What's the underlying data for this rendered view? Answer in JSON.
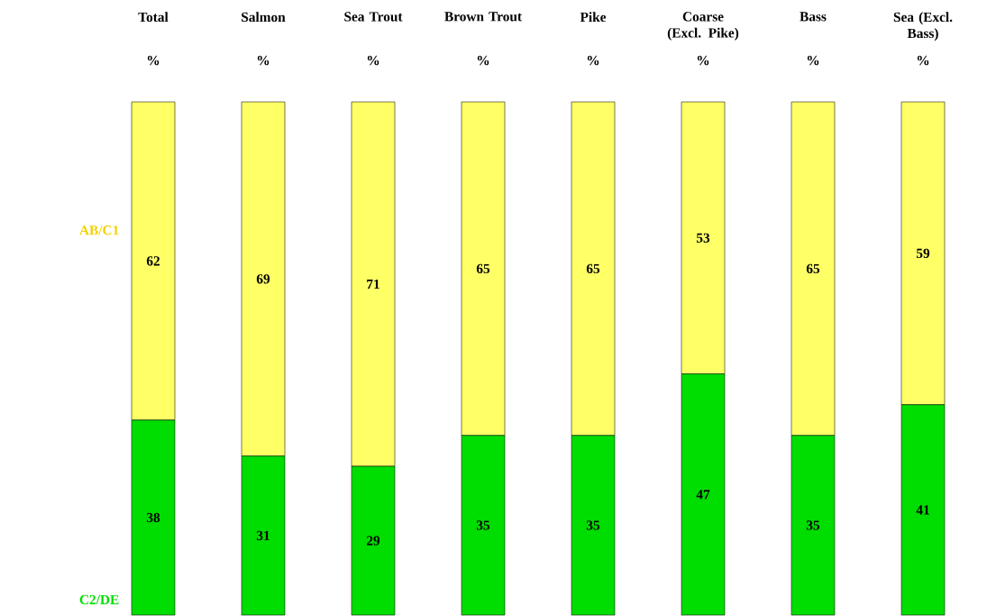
{
  "chart_data": {
    "type": "bar",
    "stacked": true,
    "data_labels": true,
    "categories": [
      "Total",
      "Salmon",
      "Sea Trout",
      "Brown Trout",
      "Pike",
      "Coarse (Excl. Pike)",
      "Bass",
      "Sea (Excl. Bass)"
    ],
    "series": [
      {
        "name": "C2/DE",
        "color": "#00dd00",
        "values": [
          38,
          31,
          29,
          35,
          35,
          47,
          35,
          41
        ]
      },
      {
        "name": "AB/C1",
        "color": "#ffff66",
        "values": [
          62,
          69,
          71,
          65,
          65,
          53,
          65,
          59
        ]
      }
    ],
    "annotations": [
      "%",
      "%",
      "%",
      "%",
      "%",
      "%",
      "%",
      "%"
    ]
  }
}
